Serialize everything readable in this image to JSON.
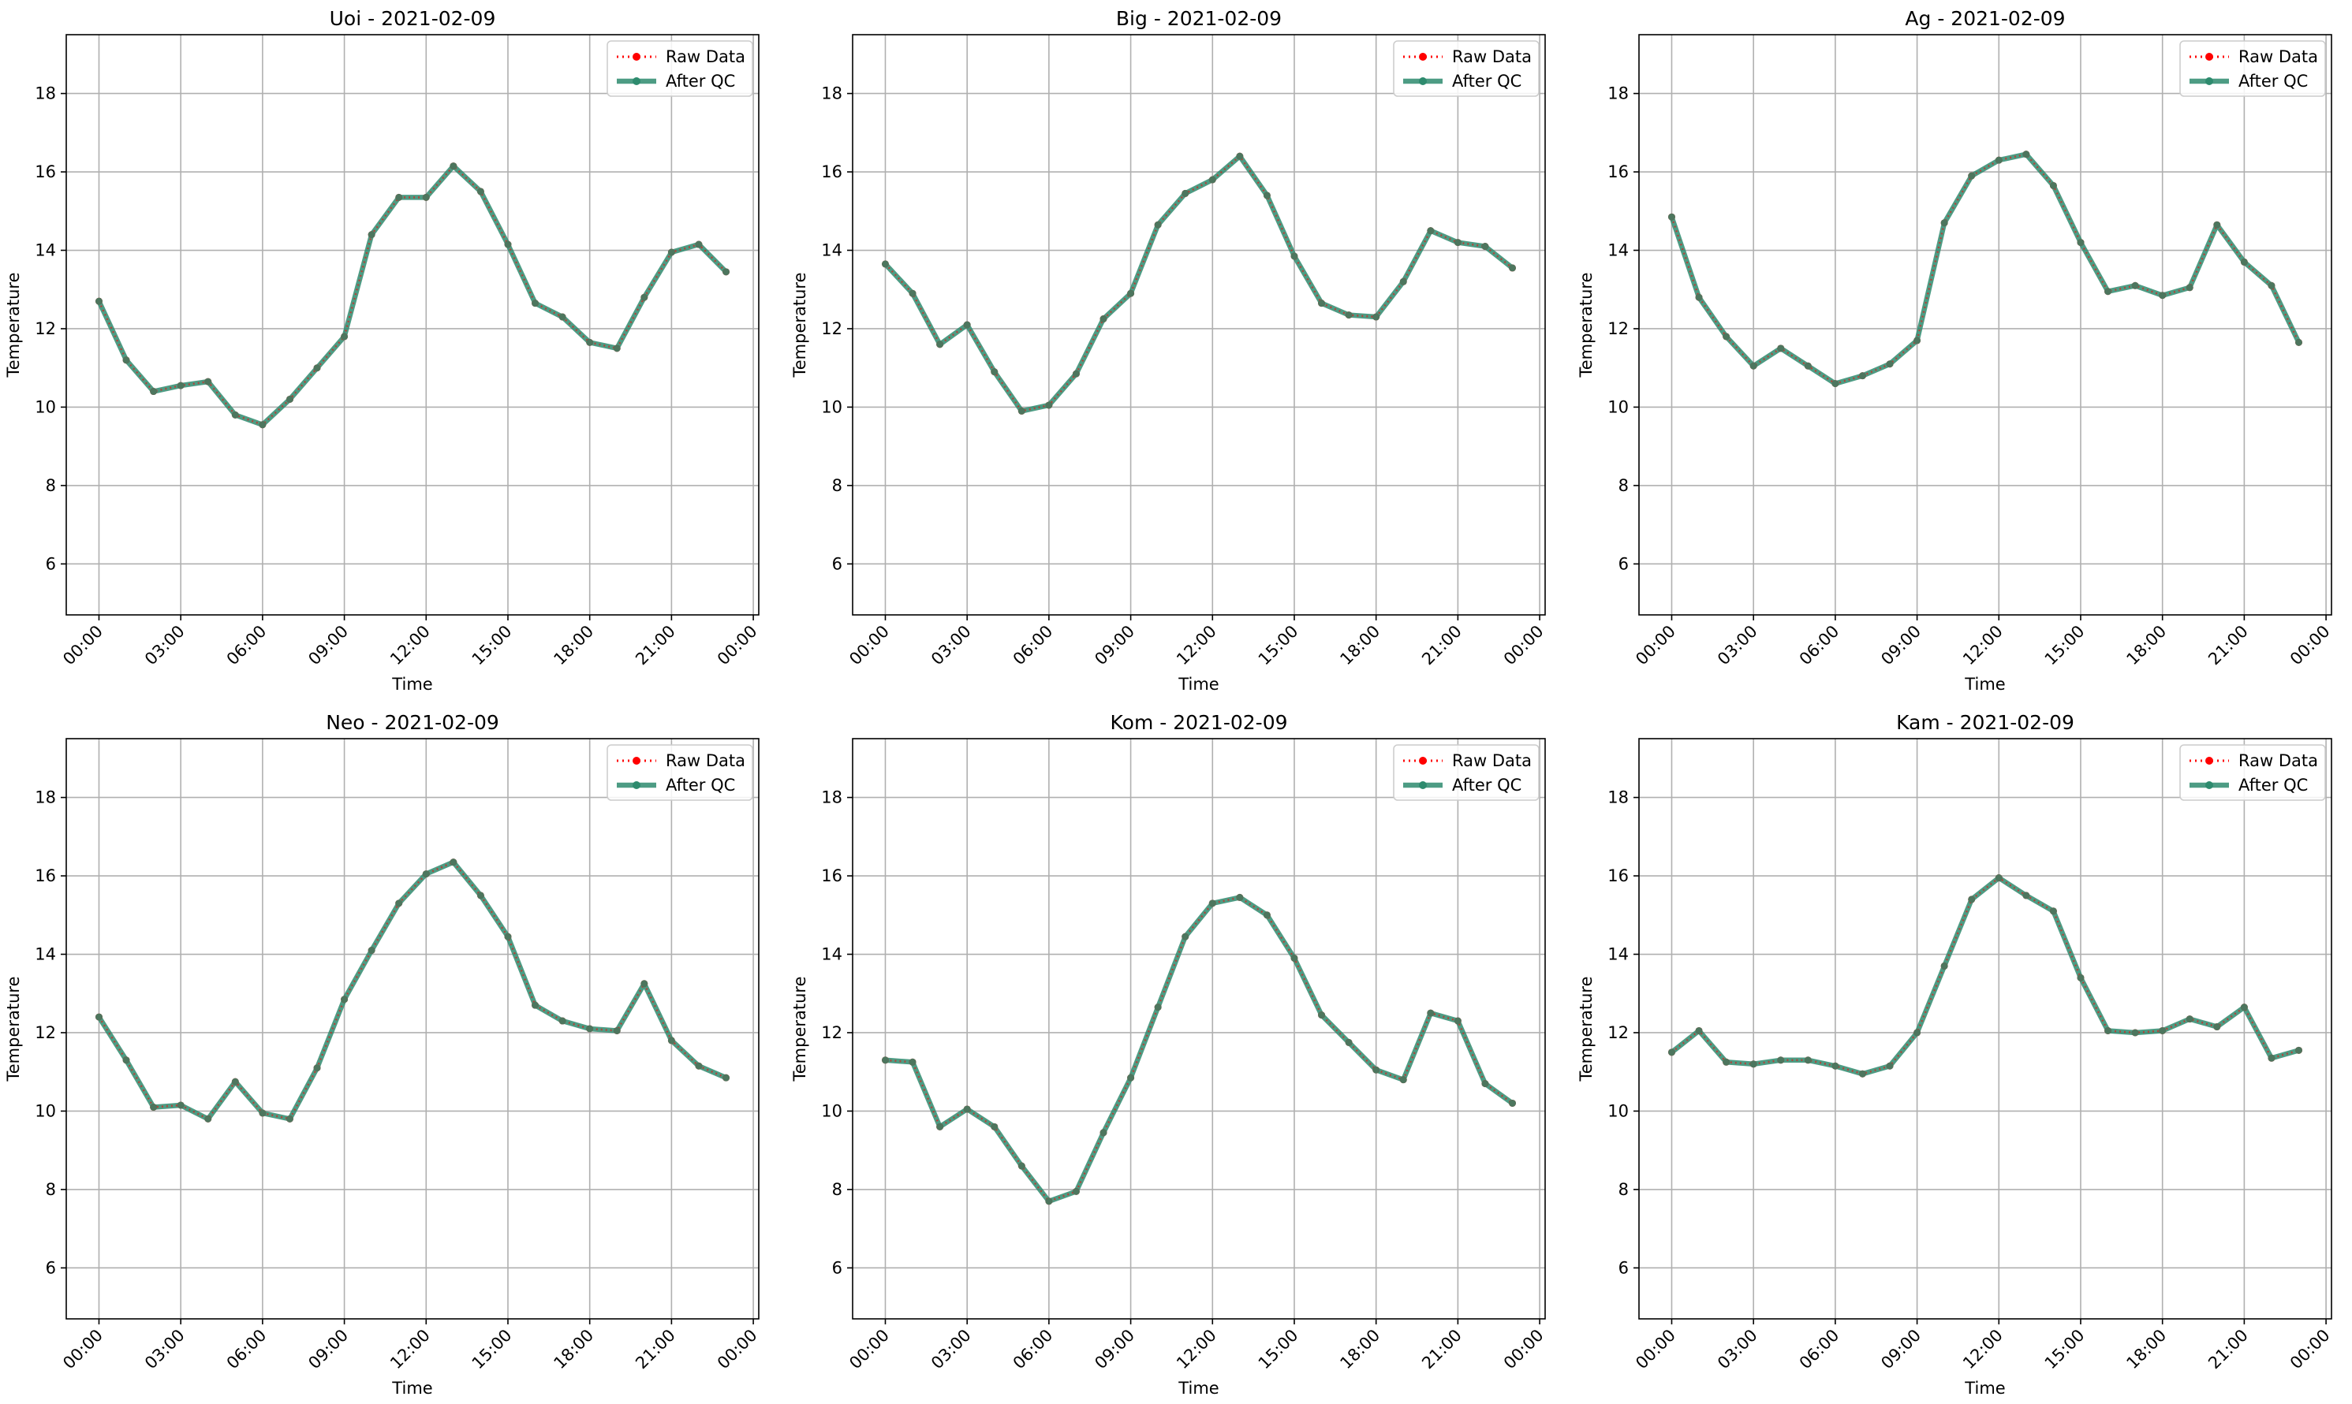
{
  "chart_data": [
    {
      "type": "line",
      "title": "Uoi - 2021-02-09",
      "xlabel": "Time",
      "ylabel": "Temperature",
      "x_ticks": [
        "00:00",
        "03:00",
        "06:00",
        "09:00",
        "12:00",
        "15:00",
        "18:00",
        "21:00",
        "00:00"
      ],
      "y_ticks": [
        6,
        8,
        10,
        12,
        14,
        16,
        18
      ],
      "ylim": [
        4.7,
        19.5
      ],
      "xlim_hours": [
        -1.2,
        24.2
      ],
      "grid": true,
      "legend_position": "top-right",
      "x_hours": [
        0,
        1,
        2,
        3,
        4,
        5,
        6,
        7,
        8,
        9,
        10,
        11,
        12,
        13,
        14,
        15,
        16,
        17,
        18,
        19,
        20,
        21,
        22,
        23
      ],
      "series": [
        {
          "name": "Raw Data",
          "style": "dotted-marker",
          "color": "#ff0000",
          "values": [
            12.7,
            11.2,
            10.4,
            10.55,
            10.65,
            9.8,
            9.55,
            10.2,
            11.0,
            11.8,
            14.4,
            15.35,
            15.35,
            16.15,
            15.5,
            14.15,
            12.65,
            12.3,
            11.65,
            11.5,
            12.8,
            13.95,
            14.15,
            13.45
          ]
        },
        {
          "name": "After QC",
          "style": "solid-marker",
          "color": "#2e8b6e",
          "values": [
            12.7,
            11.2,
            10.4,
            10.55,
            10.65,
            9.8,
            9.55,
            10.2,
            11.0,
            11.8,
            14.4,
            15.35,
            15.35,
            16.15,
            15.5,
            14.15,
            12.65,
            12.3,
            11.65,
            11.5,
            12.8,
            13.95,
            14.15,
            13.45
          ]
        }
      ]
    },
    {
      "type": "line",
      "title": "Big - 2021-02-09",
      "xlabel": "Time",
      "ylabel": "Temperature",
      "x_ticks": [
        "00:00",
        "03:00",
        "06:00",
        "09:00",
        "12:00",
        "15:00",
        "18:00",
        "21:00",
        "00:00"
      ],
      "y_ticks": [
        6,
        8,
        10,
        12,
        14,
        16,
        18
      ],
      "ylim": [
        4.7,
        19.5
      ],
      "xlim_hours": [
        -1.2,
        24.2
      ],
      "grid": true,
      "legend_position": "top-right",
      "x_hours": [
        0,
        1,
        2,
        3,
        4,
        5,
        6,
        7,
        8,
        9,
        10,
        11,
        12,
        13,
        14,
        15,
        16,
        17,
        18,
        19,
        20,
        21,
        22,
        23
      ],
      "series": [
        {
          "name": "Raw Data",
          "style": "dotted-marker",
          "color": "#ff0000",
          "values": [
            13.65,
            12.9,
            11.6,
            12.1,
            10.9,
            9.9,
            10.05,
            10.85,
            12.25,
            12.9,
            14.65,
            15.45,
            15.8,
            16.4,
            15.4,
            13.85,
            12.65,
            12.35,
            12.3,
            13.2,
            14.5,
            14.2,
            14.1,
            13.55
          ]
        },
        {
          "name": "After QC",
          "style": "solid-marker",
          "color": "#2e8b6e",
          "values": [
            13.65,
            12.9,
            11.6,
            12.1,
            10.9,
            9.9,
            10.05,
            10.85,
            12.25,
            12.9,
            14.65,
            15.45,
            15.8,
            16.4,
            15.4,
            13.85,
            12.65,
            12.35,
            12.3,
            13.2,
            14.5,
            14.2,
            14.1,
            13.55
          ]
        }
      ]
    },
    {
      "type": "line",
      "title": "Ag - 2021-02-09",
      "xlabel": "Time",
      "ylabel": "Temperature",
      "x_ticks": [
        "00:00",
        "03:00",
        "06:00",
        "09:00",
        "12:00",
        "15:00",
        "18:00",
        "21:00",
        "00:00"
      ],
      "y_ticks": [
        6,
        8,
        10,
        12,
        14,
        16,
        18
      ],
      "ylim": [
        4.7,
        19.5
      ],
      "xlim_hours": [
        -1.2,
        24.2
      ],
      "grid": true,
      "legend_position": "top-right",
      "x_hours": [
        0,
        1,
        2,
        3,
        4,
        5,
        6,
        7,
        8,
        9,
        10,
        11,
        12,
        13,
        14,
        15,
        16,
        17,
        18,
        19,
        20,
        21,
        22,
        23
      ],
      "series": [
        {
          "name": "Raw Data",
          "style": "dotted-marker",
          "color": "#ff0000",
          "values": [
            14.85,
            12.8,
            11.8,
            11.05,
            11.5,
            11.05,
            10.6,
            10.8,
            11.1,
            11.7,
            14.7,
            15.9,
            16.3,
            16.45,
            15.65,
            14.2,
            12.95,
            13.1,
            12.85,
            13.05,
            14.65,
            13.7,
            13.1,
            11.65
          ]
        },
        {
          "name": "After QC",
          "style": "solid-marker",
          "color": "#2e8b6e",
          "values": [
            14.85,
            12.8,
            11.8,
            11.05,
            11.5,
            11.05,
            10.6,
            10.8,
            11.1,
            11.7,
            14.7,
            15.9,
            16.3,
            16.45,
            15.65,
            14.2,
            12.95,
            13.1,
            12.85,
            13.05,
            14.65,
            13.7,
            13.1,
            11.65
          ]
        }
      ]
    },
    {
      "type": "line",
      "title": "Neo - 2021-02-09",
      "xlabel": "Time",
      "ylabel": "Temperature",
      "x_ticks": [
        "00:00",
        "03:00",
        "06:00",
        "09:00",
        "12:00",
        "15:00",
        "18:00",
        "21:00",
        "00:00"
      ],
      "y_ticks": [
        6,
        8,
        10,
        12,
        14,
        16,
        18
      ],
      "ylim": [
        4.7,
        19.5
      ],
      "xlim_hours": [
        -1.2,
        24.2
      ],
      "grid": true,
      "legend_position": "top-right",
      "x_hours": [
        0,
        1,
        2,
        3,
        4,
        5,
        6,
        7,
        8,
        9,
        10,
        11,
        12,
        13,
        14,
        15,
        16,
        17,
        18,
        19,
        20,
        21,
        22,
        23
      ],
      "series": [
        {
          "name": "Raw Data",
          "style": "dotted-marker",
          "color": "#ff0000",
          "values": [
            12.4,
            11.3,
            10.1,
            10.15,
            9.8,
            10.75,
            9.95,
            9.8,
            11.1,
            12.85,
            14.1,
            15.3,
            16.05,
            16.35,
            15.5,
            14.45,
            12.7,
            12.3,
            12.1,
            12.05,
            13.25,
            11.8,
            11.15,
            10.85
          ]
        },
        {
          "name": "After QC",
          "style": "solid-marker",
          "color": "#2e8b6e",
          "values": [
            12.4,
            11.3,
            10.1,
            10.15,
            9.8,
            10.75,
            9.95,
            9.8,
            11.1,
            12.85,
            14.1,
            15.3,
            16.05,
            16.35,
            15.5,
            14.45,
            12.7,
            12.3,
            12.1,
            12.05,
            13.25,
            11.8,
            11.15,
            10.85
          ]
        }
      ]
    },
    {
      "type": "line",
      "title": "Kom - 2021-02-09",
      "xlabel": "Time",
      "ylabel": "Temperature",
      "x_ticks": [
        "00:00",
        "03:00",
        "06:00",
        "09:00",
        "12:00",
        "15:00",
        "18:00",
        "21:00",
        "00:00"
      ],
      "y_ticks": [
        6,
        8,
        10,
        12,
        14,
        16,
        18
      ],
      "ylim": [
        4.7,
        19.5
      ],
      "xlim_hours": [
        -1.2,
        24.2
      ],
      "grid": true,
      "legend_position": "top-right",
      "x_hours": [
        0,
        1,
        2,
        3,
        4,
        5,
        6,
        7,
        8,
        9,
        10,
        11,
        12,
        13,
        14,
        15,
        16,
        17,
        18,
        19,
        20,
        21,
        22,
        23
      ],
      "series": [
        {
          "name": "Raw Data",
          "style": "dotted-marker",
          "color": "#ff0000",
          "values": [
            11.3,
            11.25,
            9.6,
            10.05,
            9.6,
            8.6,
            7.7,
            7.95,
            9.45,
            10.85,
            12.65,
            14.45,
            15.3,
            15.45,
            15.0,
            13.9,
            12.45,
            11.75,
            11.05,
            10.8,
            12.5,
            12.3,
            10.7,
            10.2
          ]
        },
        {
          "name": "After QC",
          "style": "solid-marker",
          "color": "#2e8b6e",
          "values": [
            11.3,
            11.25,
            9.6,
            10.05,
            9.6,
            8.6,
            7.7,
            7.95,
            9.45,
            10.85,
            12.65,
            14.45,
            15.3,
            15.45,
            15.0,
            13.9,
            12.45,
            11.75,
            11.05,
            10.8,
            12.5,
            12.3,
            10.7,
            10.2
          ]
        }
      ]
    },
    {
      "type": "line",
      "title": "Kam - 2021-02-09",
      "xlabel": "Time",
      "ylabel": "Temperature",
      "x_ticks": [
        "00:00",
        "03:00",
        "06:00",
        "09:00",
        "12:00",
        "15:00",
        "18:00",
        "21:00",
        "00:00"
      ],
      "y_ticks": [
        6,
        8,
        10,
        12,
        14,
        16,
        18
      ],
      "ylim": [
        4.7,
        19.5
      ],
      "xlim_hours": [
        -1.2,
        24.2
      ],
      "grid": true,
      "legend_position": "top-right",
      "x_hours": [
        0,
        1,
        2,
        3,
        4,
        5,
        6,
        7,
        8,
        9,
        10,
        11,
        12,
        13,
        14,
        15,
        16,
        17,
        18,
        19,
        20,
        21,
        22,
        23
      ],
      "series": [
        {
          "name": "Raw Data",
          "style": "dotted-marker",
          "color": "#ff0000",
          "values": [
            11.5,
            12.05,
            11.25,
            11.2,
            11.3,
            11.3,
            11.15,
            10.95,
            11.15,
            12.0,
            13.7,
            15.4,
            15.95,
            15.5,
            15.1,
            13.4,
            12.05,
            12.0,
            12.05,
            12.35,
            12.15,
            12.65,
            11.35,
            11.55
          ]
        },
        {
          "name": "After QC",
          "style": "solid-marker",
          "color": "#2e8b6e",
          "values": [
            11.5,
            12.05,
            11.25,
            11.2,
            11.3,
            11.3,
            11.15,
            10.95,
            11.15,
            12.0,
            13.7,
            15.4,
            15.95,
            15.5,
            15.1,
            13.4,
            12.05,
            12.0,
            12.05,
            12.35,
            12.15,
            12.65,
            11.35,
            11.55
          ]
        }
      ]
    }
  ]
}
